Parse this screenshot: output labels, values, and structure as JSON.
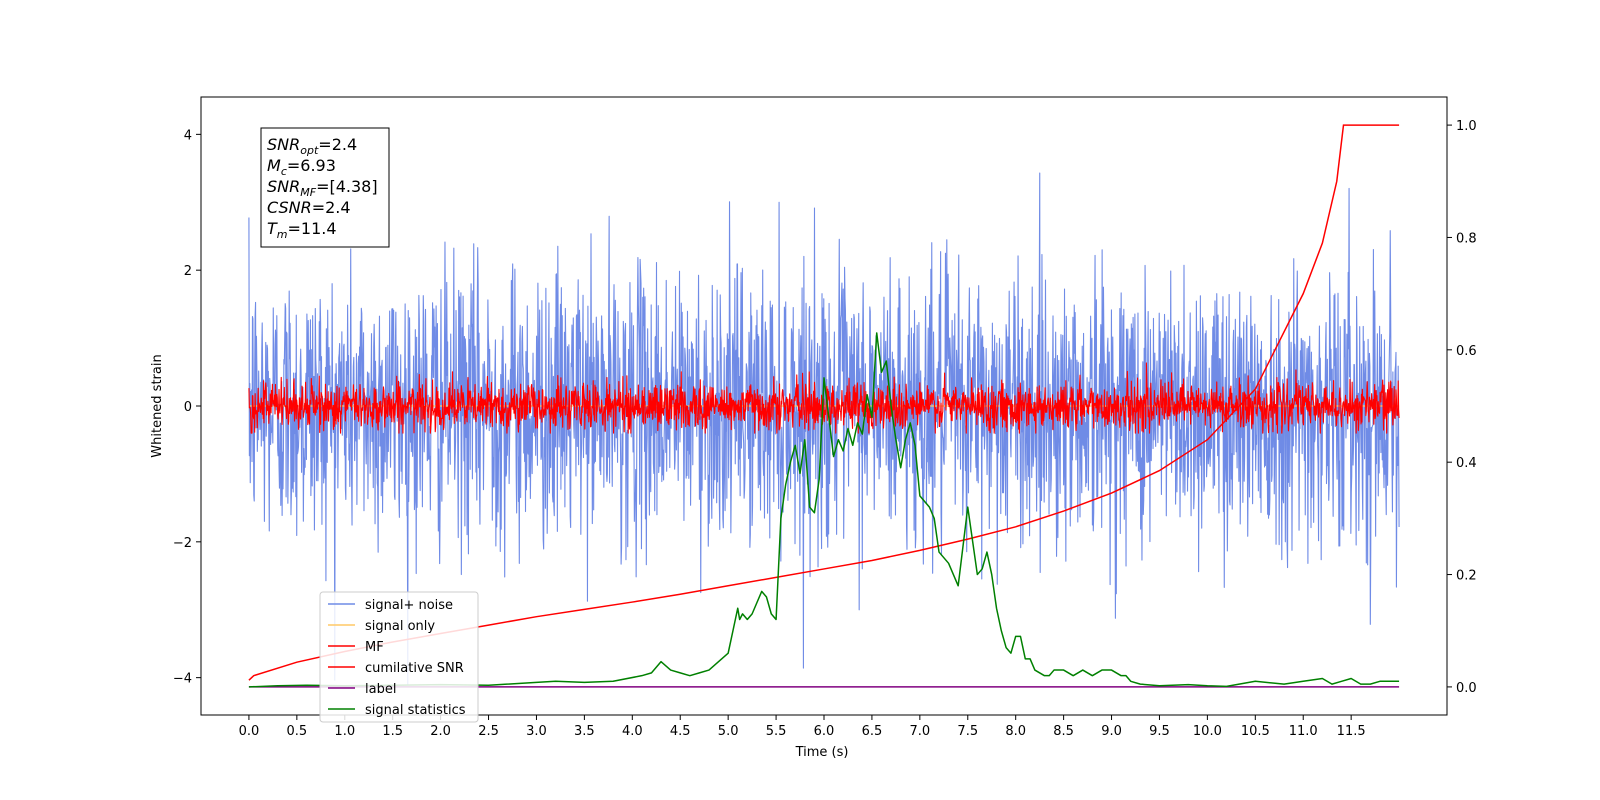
{
  "chart_data": {
    "type": "line",
    "xlabel": "Time (s)",
    "ylabel": "Whitened strain",
    "xlim": [
      -0.5,
      12.5
    ],
    "ylim": [
      -4.55,
      4.55
    ],
    "y2lim": [
      -0.05,
      1.05
    ],
    "xticks": [
      0.0,
      0.5,
      1.0,
      1.5,
      2.0,
      2.5,
      3.0,
      3.5,
      4.0,
      4.5,
      5.0,
      5.5,
      6.0,
      6.5,
      7.0,
      7.5,
      8.0,
      8.5,
      9.0,
      9.5,
      10.0,
      10.5,
      11.0,
      11.5
    ],
    "xtick_labels": [
      "0.0",
      "0.5",
      "1.0",
      "1.5",
      "2.0",
      "2.5",
      "3.0",
      "3.5",
      "4.0",
      "4.5",
      "5.0",
      "5.5",
      "6.0",
      "6.5",
      "7.0",
      "7.5",
      "8.0",
      "8.5",
      "9.0",
      "9.5",
      "10.0",
      "10.5",
      "11.0",
      "11.5"
    ],
    "yticks": [
      -4,
      -2,
      0,
      2,
      4
    ],
    "ytick_labels": [
      "−4",
      "−2",
      "0",
      "2",
      "4"
    ],
    "y2ticks": [
      0.0,
      0.2,
      0.4,
      0.6,
      0.8,
      1.0
    ],
    "y2tick_labels": [
      "0.0",
      "0.2",
      "0.4",
      "0.6",
      "0.8",
      "1.0"
    ],
    "grid": false,
    "legend_position": "lower-left",
    "series": [
      {
        "name": "signal+ noise",
        "color": "#6f8be6",
        "axis": "left",
        "noise_band": {
          "x_start": 0.0,
          "x_end": 12.0,
          "typical_amplitude": 2.0,
          "max": 4.1,
          "min": -4.1
        }
      },
      {
        "name": "signal only",
        "color": "#ffc966",
        "axis": "left",
        "x": [
          0.0,
          12.0
        ],
        "y": [
          0.0,
          0.0
        ]
      },
      {
        "name": "MF",
        "color": "#ff0000",
        "axis": "left",
        "noise_band": {
          "x_start": 0.0,
          "x_end": 12.0,
          "typical_amplitude": 0.35,
          "max": 0.85,
          "min": -0.4
        }
      },
      {
        "name": "cumilative SNR",
        "color": "#ff0000",
        "axis": "right",
        "x": [
          0.0,
          0.05,
          0.5,
          1.0,
          1.5,
          2.0,
          2.5,
          3.0,
          3.5,
          4.0,
          4.5,
          5.0,
          5.5,
          6.0,
          6.5,
          7.0,
          7.5,
          8.0,
          8.5,
          9.0,
          9.5,
          10.0,
          10.5,
          11.0,
          11.2,
          11.35,
          11.42,
          12.0
        ],
        "y": [
          0.012,
          0.02,
          0.044,
          0.063,
          0.08,
          0.095,
          0.11,
          0.125,
          0.138,
          0.151,
          0.165,
          0.18,
          0.195,
          0.21,
          0.225,
          0.243,
          0.263,
          0.285,
          0.313,
          0.345,
          0.385,
          0.44,
          0.53,
          0.7,
          0.79,
          0.9,
          1.0,
          1.0
        ]
      },
      {
        "name": "label",
        "color": "#800080",
        "axis": "right",
        "x": [
          0.0,
          12.0
        ],
        "y": [
          0.0,
          0.0
        ]
      },
      {
        "name": "signal statistics",
        "color": "#008000",
        "axis": "right",
        "x": [
          0.0,
          0.3,
          0.6,
          1.0,
          1.5,
          2.0,
          2.5,
          3.0,
          3.2,
          3.5,
          3.8,
          4.1,
          4.2,
          4.3,
          4.4,
          4.5,
          4.6,
          4.7,
          4.8,
          5.0,
          5.05,
          5.1,
          5.12,
          5.15,
          5.2,
          5.25,
          5.3,
          5.35,
          5.4,
          5.45,
          5.5,
          5.55,
          5.6,
          5.65,
          5.7,
          5.75,
          5.8,
          5.85,
          5.9,
          5.95,
          6.0,
          6.05,
          6.1,
          6.15,
          6.2,
          6.25,
          6.3,
          6.35,
          6.4,
          6.45,
          6.5,
          6.55,
          6.6,
          6.65,
          6.7,
          6.75,
          6.8,
          6.85,
          6.9,
          6.95,
          7.0,
          7.05,
          7.1,
          7.15,
          7.2,
          7.3,
          7.4,
          7.5,
          7.6,
          7.65,
          7.7,
          7.75,
          7.8,
          7.85,
          7.9,
          7.95,
          8.0,
          8.05,
          8.1,
          8.15,
          8.2,
          8.3,
          8.35,
          8.4,
          8.5,
          8.6,
          8.7,
          8.8,
          8.9,
          9.0,
          9.1,
          9.15,
          9.2,
          9.3,
          9.5,
          9.8,
          10.0,
          10.2,
          10.5,
          10.8,
          11.0,
          11.2,
          11.3,
          11.4,
          11.5,
          11.6,
          11.7,
          11.8,
          12.0
        ],
        "y": [
          0.0,
          0.002,
          0.003,
          0.002,
          0.003,
          0.004,
          0.003,
          0.008,
          0.01,
          0.008,
          0.01,
          0.02,
          0.025,
          0.045,
          0.03,
          0.025,
          0.02,
          0.025,
          0.03,
          0.06,
          0.1,
          0.14,
          0.12,
          0.13,
          0.12,
          0.13,
          0.15,
          0.17,
          0.16,
          0.13,
          0.12,
          0.3,
          0.36,
          0.4,
          0.43,
          0.38,
          0.44,
          0.32,
          0.31,
          0.37,
          0.55,
          0.48,
          0.41,
          0.44,
          0.42,
          0.46,
          0.43,
          0.47,
          0.45,
          0.52,
          0.48,
          0.63,
          0.56,
          0.58,
          0.5,
          0.44,
          0.39,
          0.44,
          0.47,
          0.43,
          0.34,
          0.33,
          0.32,
          0.3,
          0.24,
          0.22,
          0.18,
          0.32,
          0.2,
          0.21,
          0.24,
          0.2,
          0.14,
          0.1,
          0.07,
          0.06,
          0.09,
          0.09,
          0.05,
          0.05,
          0.03,
          0.02,
          0.02,
          0.03,
          0.03,
          0.02,
          0.03,
          0.02,
          0.03,
          0.03,
          0.02,
          0.02,
          0.01,
          0.005,
          0.002,
          0.004,
          0.002,
          0.001,
          0.01,
          0.005,
          0.01,
          0.015,
          0.005,
          0.01,
          0.015,
          0.005,
          0.005,
          0.01,
          0.01
        ]
      }
    ],
    "info_box": [
      {
        "base": "SNR",
        "sub": "opt",
        "value": "=2.4"
      },
      {
        "base": "M",
        "sub": "c",
        "value": "=6.93"
      },
      {
        "base": "SNR",
        "sub": "MF",
        "value": "=[4.38]"
      },
      {
        "base": "CSNR",
        "sub": "",
        "value": "=2.4"
      },
      {
        "base": "T",
        "sub": "m",
        "value": "=11.4"
      }
    ]
  }
}
